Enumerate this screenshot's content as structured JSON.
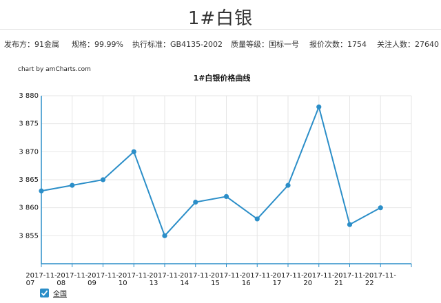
{
  "page": {
    "title": "1#白银"
  },
  "info": {
    "publisher": "发布方：91金属",
    "spec": "规格：99.99%",
    "standard": "执行标准：GB4135-2002",
    "grade": "质量等级：国标一号",
    "quotes": "报价次数：1754",
    "followers": "关注人数：27640"
  },
  "credit": "chart by amCharts.com",
  "colors": {
    "series": "#2b8ec8",
    "grid": "#e6e6e6",
    "axis": "#2b8ec8"
  },
  "chart_data": {
    "type": "line",
    "title": "1#白银价格曲线",
    "xlabel": "",
    "ylabel": "",
    "ylim": [
      3850,
      3880
    ],
    "yticks": [
      "3 880",
      "3 875",
      "3 870",
      "3 865",
      "3 860",
      "3 855"
    ],
    "x": [
      "2017-11-07",
      "2017-11-08",
      "2017-11-09",
      "2017-11-10",
      "2017-11-13",
      "2017-11-14",
      "2017-11-15",
      "2017-11-16",
      "2017-11-17",
      "2017-11-20",
      "2017-11-21",
      "2017-11-22"
    ],
    "x_tick_labels": [
      [
        "2017-11-",
        "07"
      ],
      [
        "2017-11-",
        "08"
      ],
      [
        "2017-11-",
        "09"
      ],
      [
        "2017-11-",
        "10"
      ],
      [
        "2017-11-",
        "13"
      ],
      [
        "2017-11-",
        "14"
      ],
      [
        "2017-11-",
        "15"
      ],
      [
        "2017-11-",
        "16"
      ],
      [
        "2017-11-",
        "17"
      ],
      [
        "2017-11-",
        "20"
      ],
      [
        "2017-11-",
        "21"
      ],
      [
        "2017-11-",
        "22"
      ]
    ],
    "series": [
      {
        "name": "全国",
        "values": [
          3863,
          3864,
          3865,
          3870,
          3855,
          3861,
          3862,
          3858,
          3864,
          3878,
          3857,
          3860
        ]
      }
    ],
    "grid": true,
    "legend": "bottom-left"
  },
  "legend": {
    "checkbox_mark": "✓",
    "label": "全国"
  }
}
